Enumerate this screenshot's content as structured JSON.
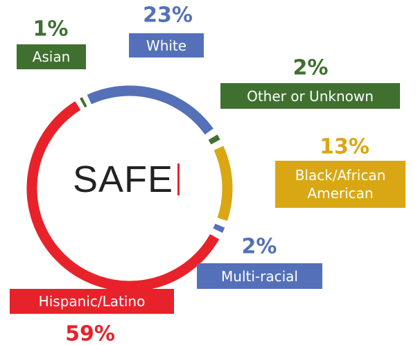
{
  "chart_data": {
    "type": "donut",
    "center_label": "SAFE",
    "categories": [
      "Asian",
      "White",
      "Other or Unknown",
      "Black/African American",
      "Multi-racial",
      "Hispanic/Latino"
    ],
    "values": [
      1,
      23,
      2,
      13,
      2,
      59
    ],
    "value_labels": [
      "1%",
      "23%",
      "2%",
      "13%",
      "2%",
      "59%"
    ],
    "colors": [
      "#3f7030",
      "#5470b8",
      "#3f7030",
      "#d9a713",
      "#5470b8",
      "#e8222a"
    ]
  }
}
